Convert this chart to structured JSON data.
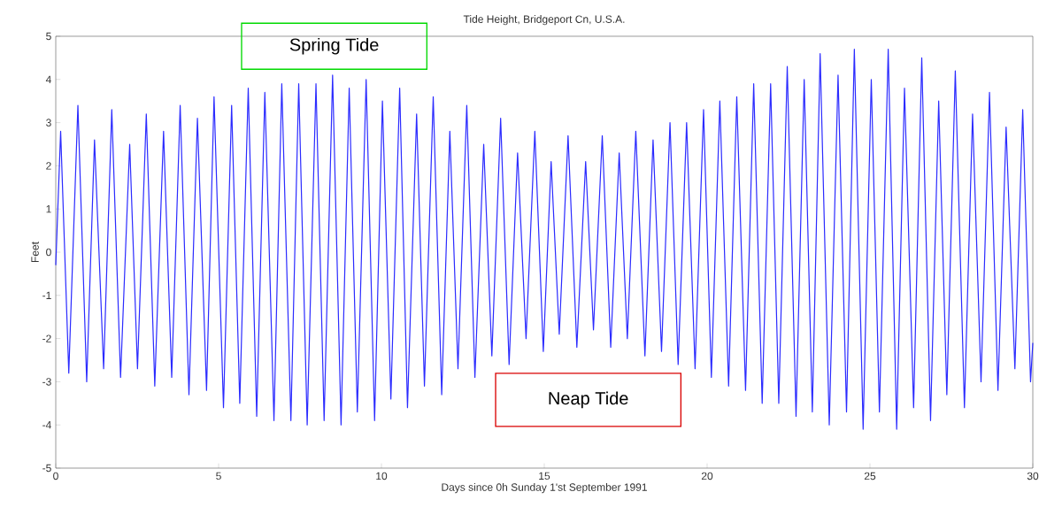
{
  "chart_data": {
    "type": "line",
    "title": "Tide Height, Bridgeport Cn, U.S.A.",
    "xlabel": "Days since 0h Sunday 1'st September 1991",
    "ylabel": "Feet",
    "annotations": [
      "Spring Tide",
      "Neap Tide"
    ],
    "xlim": [
      0,
      30
    ],
    "ylim": [
      -5,
      5
    ],
    "xticks": [
      0,
      5,
      10,
      15,
      20,
      25,
      30
    ],
    "yticks": [
      -5,
      -4,
      -3,
      -2,
      -1,
      0,
      1,
      2,
      3,
      4,
      5
    ],
    "grid": false,
    "marker": "none",
    "line_style": "solid",
    "series": [
      {
        "color": "#2b2bff",
        "x": [
          0,
          0.15,
          0.4,
          0.68,
          0.95,
          1.19,
          1.47,
          1.72,
          1.99,
          2.27,
          2.51,
          2.78,
          3.04,
          3.31,
          3.56,
          3.82,
          4.09,
          4.35,
          4.63,
          4.86,
          5.15,
          5.4,
          5.65,
          5.91,
          6.17,
          6.42,
          6.7,
          6.94,
          7.22,
          7.46,
          7.72,
          7.99,
          8.24,
          8.5,
          8.76,
          9.01,
          9.26,
          9.53,
          9.79,
          10.03,
          10.29,
          10.56,
          10.8,
          11.08,
          11.32,
          11.59,
          11.85,
          12.1,
          12.35,
          12.62,
          12.87,
          13.14,
          13.39,
          13.66,
          13.92,
          14.18,
          14.44,
          14.71,
          14.97,
          15.21,
          15.46,
          15.73,
          16.0,
          16.27,
          16.51,
          16.78,
          17.04,
          17.3,
          17.55,
          17.81,
          18.09,
          18.34,
          18.6,
          18.86,
          19.11,
          19.37,
          19.63,
          19.89,
          20.13,
          20.39,
          20.66,
          20.91,
          21.18,
          21.43,
          21.69,
          21.95,
          22.2,
          22.46,
          22.73,
          22.98,
          23.23,
          23.47,
          23.75,
          24.02,
          24.28,
          24.52,
          24.79,
          25.04,
          25.29,
          25.56,
          25.82,
          26.06,
          26.34,
          26.59,
          26.86,
          27.11,
          27.36,
          27.62,
          27.9,
          28.15,
          28.41,
          28.67,
          28.93,
          29.18,
          29.45,
          29.69,
          29.93,
          30
        ],
        "values": [
          -0.3,
          2.8,
          -2.8,
          3.4,
          -3.0,
          2.6,
          -2.7,
          3.3,
          -2.9,
          2.5,
          -2.7,
          3.2,
          -3.1,
          2.8,
          -2.9,
          3.4,
          -3.3,
          3.1,
          -3.2,
          3.6,
          -3.6,
          3.4,
          -3.5,
          3.8,
          -3.8,
          3.7,
          -3.9,
          3.9,
          -3.9,
          3.9,
          -4.0,
          3.9,
          -3.9,
          4.1,
          -4.0,
          3.8,
          -3.7,
          4.0,
          -3.9,
          3.5,
          -3.4,
          3.8,
          -3.6,
          3.2,
          -3.1,
          3.6,
          -3.3,
          2.8,
          -2.7,
          3.4,
          -2.9,
          2.5,
          -2.4,
          3.1,
          -2.6,
          2.3,
          -2.0,
          2.8,
          -2.3,
          2.1,
          -1.9,
          2.7,
          -2.2,
          2.1,
          -1.8,
          2.7,
          -2.2,
          2.3,
          -2.0,
          2.8,
          -2.4,
          2.6,
          -2.3,
          3.0,
          -2.6,
          3.0,
          -2.7,
          3.3,
          -2.9,
          3.5,
          -3.1,
          3.6,
          -3.2,
          3.9,
          -3.5,
          3.9,
          -3.5,
          4.3,
          -3.8,
          4.0,
          -3.7,
          4.6,
          -4.0,
          4.1,
          -3.7,
          4.7,
          -4.1,
          4.0,
          -3.7,
          4.7,
          -4.1,
          3.8,
          -3.6,
          4.5,
          -3.9,
          3.5,
          -3.3,
          4.2,
          -3.6,
          3.2,
          -3.0,
          3.7,
          -3.2,
          2.9,
          -2.7,
          3.3,
          -3.0,
          -2.1
        ]
      }
    ]
  }
}
